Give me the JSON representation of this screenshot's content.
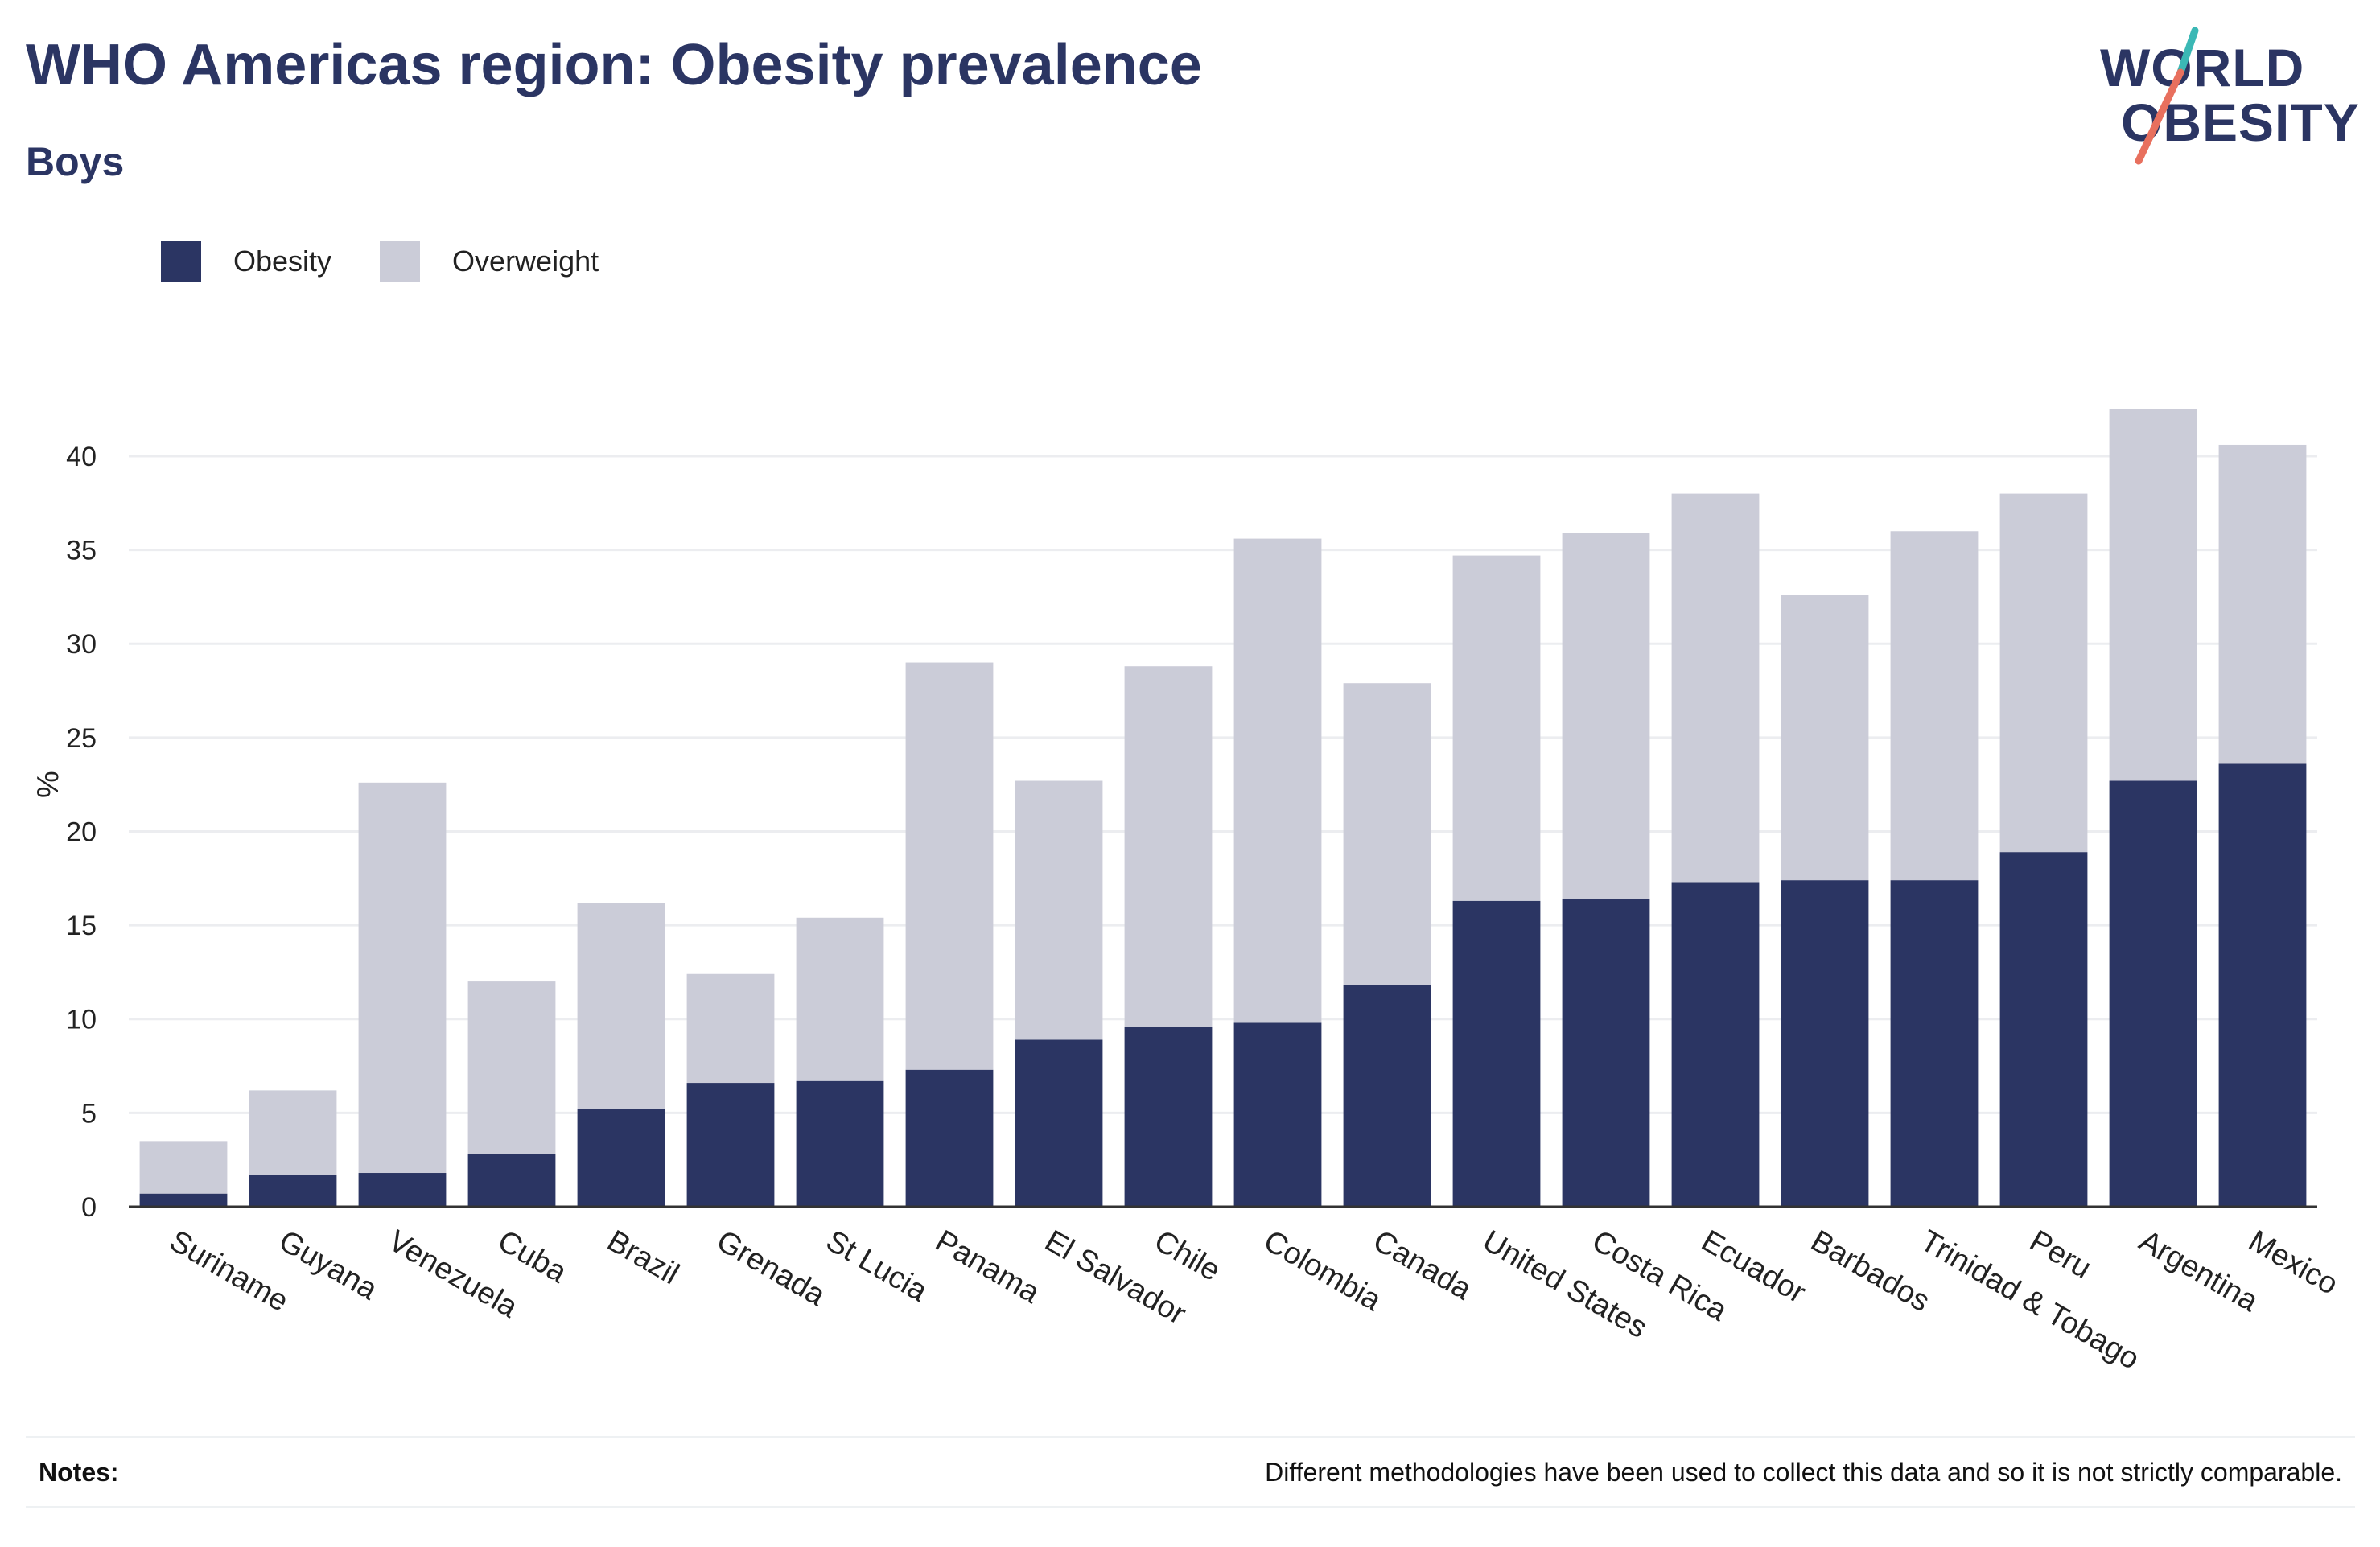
{
  "header": {
    "title": "WHO Americas region: Obesity prevalence",
    "subtitle": "Boys"
  },
  "logo": {
    "line1": "WORLD",
    "line2": "OBESITY",
    "colors": {
      "text": "#2b3563",
      "slash_teal": "#3bb8b5",
      "slash_coral": "#e8705e"
    }
  },
  "legend": [
    {
      "label": "Obesity",
      "color": "#2b3563"
    },
    {
      "label": "Overweight",
      "color": "#cbccd8"
    }
  ],
  "chart_data": {
    "type": "bar",
    "stacked": true,
    "ylabel": "%",
    "xlabel": "",
    "ylim": [
      0,
      45
    ],
    "yticks": [
      0,
      5,
      10,
      15,
      20,
      25,
      30,
      35,
      40
    ],
    "grid": true,
    "legend_position": "top-left",
    "categories": [
      "Suriname",
      "Guyana",
      "Venezuela",
      "Cuba",
      "Brazil",
      "Grenada",
      "St Lucia",
      "Panama",
      "El Salvador",
      "Chile",
      "Colombia",
      "Canada",
      "United States",
      "Costa Rica",
      "Ecuador",
      "Barbados",
      "Trinidad & Tobago",
      "Peru",
      "Argentina",
      "Mexico"
    ],
    "series": [
      {
        "name": "Obesity",
        "color": "#2b3563",
        "values": [
          0.7,
          1.7,
          1.8,
          2.8,
          5.2,
          6.6,
          6.7,
          7.3,
          8.9,
          9.6,
          9.8,
          11.8,
          16.3,
          16.4,
          17.3,
          17.4,
          17.4,
          18.9,
          22.7,
          23.6
        ]
      },
      {
        "name": "Overweight",
        "color": "#cbccd8",
        "values": [
          2.8,
          4.5,
          20.8,
          9.2,
          11.0,
          5.8,
          8.7,
          21.7,
          13.8,
          19.2,
          25.8,
          16.1,
          18.4,
          19.5,
          20.7,
          15.2,
          18.6,
          19.1,
          19.8,
          17.0
        ]
      }
    ]
  },
  "notes": {
    "label": "Notes:",
    "text": "Different methodologies have been used to collect this data and so it is not strictly comparable."
  }
}
